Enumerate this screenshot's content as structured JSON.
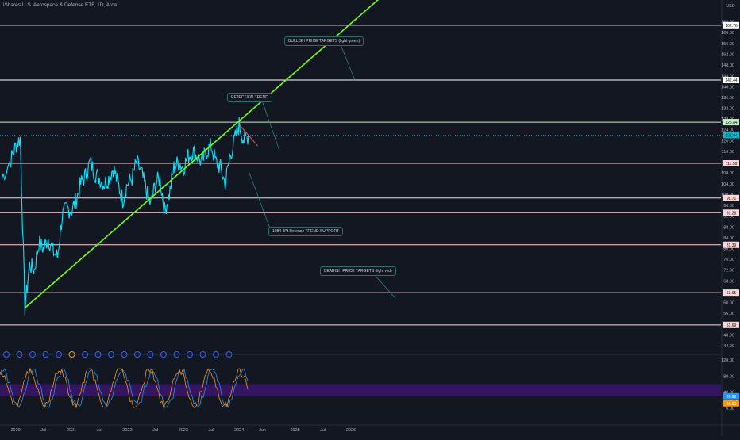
{
  "header": {
    "title": "iShares U.S. Aerospace & Defense ETF, 1D, Arca",
    "currency": "USD"
  },
  "notes": {
    "bullish": "BULLISH PRICE TARGETS (light green)",
    "rejection": "REJECTION TREND",
    "support": "1984 4Pt Defense TREND SUPPORT",
    "bearish": "BEARISH PRICE TARGETS (light red)"
  },
  "chart_data": {
    "type": "line",
    "title": "iShares U.S. Aerospace & Defense ETF, 1D, Arca",
    "y_ticks": [
      44,
      48,
      52,
      56,
      60,
      64,
      68,
      72,
      76,
      80,
      84,
      88,
      92,
      96,
      100,
      104,
      108,
      112,
      116,
      120,
      124,
      128,
      132,
      136,
      140,
      144,
      148,
      152,
      156,
      160,
      164
    ],
    "ylim": [
      44,
      168
    ],
    "x_ticks": [
      "2020",
      "Jul",
      "2021",
      "Jul",
      "2022",
      "Jul",
      "2023",
      "Jul",
      "2024",
      "Jun",
      "2025",
      "Jul",
      "2026"
    ],
    "levels": [
      {
        "value": 162.76,
        "label": "162.76",
        "color": "#ffffff"
      },
      {
        "value": 142.44,
        "label": "142.44",
        "color": "#ffffff"
      },
      {
        "value": 126.84,
        "label": "126.84",
        "color": "#c8f0c8"
      },
      {
        "value": 122.04,
        "label": "122.04",
        "color": "#00bcd4",
        "current": true
      },
      {
        "value": 111.58,
        "label": "111.58",
        "color": "#ffd6d6"
      },
      {
        "value": 98.71,
        "label": "98.71",
        "color": "#ffd6d6"
      },
      {
        "value": 93.28,
        "label": "93.28",
        "color": "#ffd6d6"
      },
      {
        "value": 81.39,
        "label": "81.39",
        "color": "#ffd6d6"
      },
      {
        "value": 63.65,
        "label": "63.65",
        "color": "#ffd6d6"
      },
      {
        "value": 51.69,
        "label": "51.69",
        "color": "#ffd6d6"
      }
    ],
    "price_keypoints": [
      {
        "x": "2019-10",
        "y": 106
      },
      {
        "x": "2019-12",
        "y": 113
      },
      {
        "x": "2020-01",
        "y": 118
      },
      {
        "x": "2020-02",
        "y": 121
      },
      {
        "x": "2020-03",
        "y": 58
      },
      {
        "x": "2020-04",
        "y": 74
      },
      {
        "x": "2020-05",
        "y": 72
      },
      {
        "x": "2020-06",
        "y": 82
      },
      {
        "x": "2020-07",
        "y": 80
      },
      {
        "x": "2020-08",
        "y": 84
      },
      {
        "x": "2020-09",
        "y": 79
      },
      {
        "x": "2020-10",
        "y": 77
      },
      {
        "x": "2020-11",
        "y": 92
      },
      {
        "x": "2020-12",
        "y": 95
      },
      {
        "x": "2021-01",
        "y": 94
      },
      {
        "x": "2021-02",
        "y": 98
      },
      {
        "x": "2021-03",
        "y": 104
      },
      {
        "x": "2021-04",
        "y": 107
      },
      {
        "x": "2021-05",
        "y": 112
      },
      {
        "x": "2021-06",
        "y": 108
      },
      {
        "x": "2021-07",
        "y": 106
      },
      {
        "x": "2021-08",
        "y": 104
      },
      {
        "x": "2021-09",
        "y": 106
      },
      {
        "x": "2021-10",
        "y": 110
      },
      {
        "x": "2021-11",
        "y": 104
      },
      {
        "x": "2021-12",
        "y": 98
      },
      {
        "x": "2022-01",
        "y": 104
      },
      {
        "x": "2022-02",
        "y": 106
      },
      {
        "x": "2022-03",
        "y": 112
      },
      {
        "x": "2022-04",
        "y": 108
      },
      {
        "x": "2022-05",
        "y": 102
      },
      {
        "x": "2022-06",
        "y": 96
      },
      {
        "x": "2022-07",
        "y": 104
      },
      {
        "x": "2022-08",
        "y": 106
      },
      {
        "x": "2022-09",
        "y": 94
      },
      {
        "x": "2022-10",
        "y": 100
      },
      {
        "x": "2022-11",
        "y": 110
      },
      {
        "x": "2022-12",
        "y": 112
      },
      {
        "x": "2023-01",
        "y": 110
      },
      {
        "x": "2023-02",
        "y": 114
      },
      {
        "x": "2023-03",
        "y": 116
      },
      {
        "x": "2023-04",
        "y": 114
      },
      {
        "x": "2023-05",
        "y": 112
      },
      {
        "x": "2023-06",
        "y": 116
      },
      {
        "x": "2023-07",
        "y": 118
      },
      {
        "x": "2023-08",
        "y": 112
      },
      {
        "x": "2023-09",
        "y": 110
      },
      {
        "x": "2023-10",
        "y": 104
      },
      {
        "x": "2023-11",
        "y": 114
      },
      {
        "x": "2023-12",
        "y": 120
      },
      {
        "x": "2024-01",
        "y": 126
      },
      {
        "x": "2024-02",
        "y": 120
      },
      {
        "x": "2024-03",
        "y": 122
      }
    ],
    "trendlines": [
      {
        "name": "support",
        "color": "#76ff03",
        "from": {
          "x": "2020-03",
          "y": 58
        },
        "to": {
          "x": "2026-12",
          "y": 180
        }
      },
      {
        "name": "rejection",
        "color": "#ff5252",
        "from": {
          "x": "2024-01",
          "y": 126
        },
        "to": {
          "x": "2024-05",
          "y": 118
        }
      }
    ],
    "oscillator": {
      "y_ticks": [
        0,
        40,
        80,
        120
      ],
      "band": [
        30,
        60
      ],
      "readouts": [
        {
          "label": "26.68",
          "color": "#2196f3"
        },
        {
          "label": "26.60",
          "color": "#ff9800"
        }
      ]
    },
    "event_markers": 18
  }
}
